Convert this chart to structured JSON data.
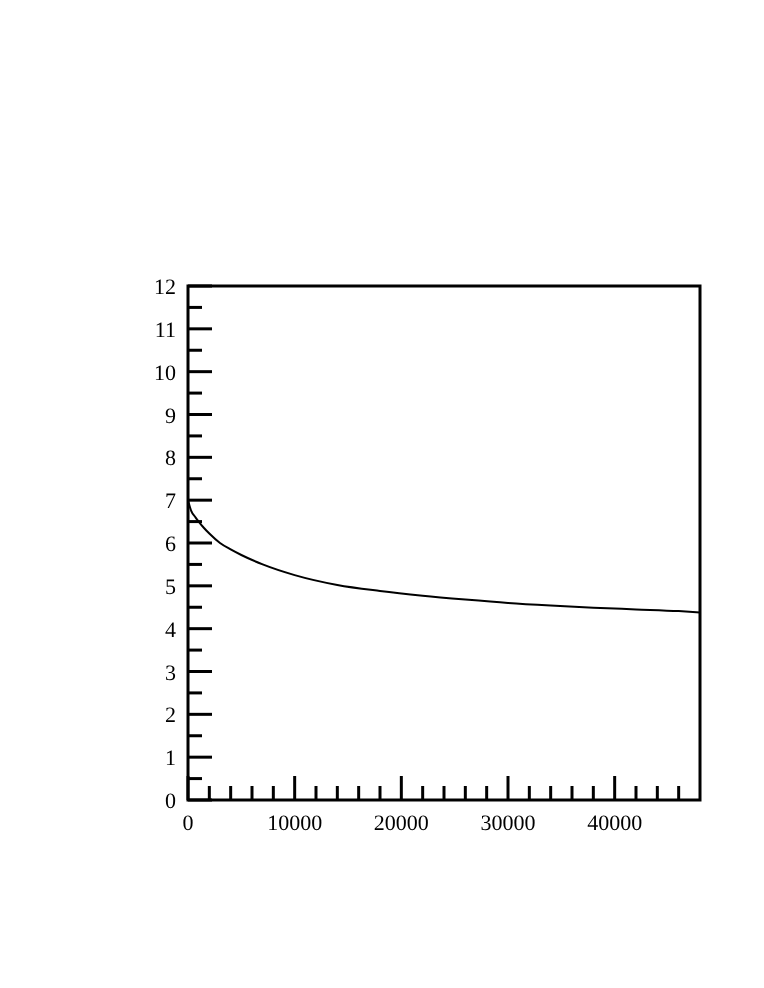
{
  "chart_data": {
    "type": "line",
    "xlim": [
      0,
      48000
    ],
    "ylim": [
      0,
      12
    ],
    "xticks": [
      0,
      {
        "value": 2000,
        "label": null
      },
      {
        "value": 4000,
        "label": null
      },
      {
        "value": 6000,
        "label": null
      },
      {
        "value": 8000,
        "label": null
      },
      10000,
      {
        "value": 12000,
        "label": null
      },
      {
        "value": 14000,
        "label": null
      },
      {
        "value": 16000,
        "label": null
      },
      {
        "value": 18000,
        "label": null
      },
      20000,
      {
        "value": 22000,
        "label": null
      },
      {
        "value": 24000,
        "label": null
      },
      {
        "value": 26000,
        "label": null
      },
      {
        "value": 28000,
        "label": null
      },
      30000,
      {
        "value": 32000,
        "label": null
      },
      {
        "value": 34000,
        "label": null
      },
      {
        "value": 36000,
        "label": null
      },
      {
        "value": 38000,
        "label": null
      },
      40000,
      {
        "value": 42000,
        "label": null
      },
      {
        "value": 44000,
        "label": null
      },
      {
        "value": 46000,
        "label": null
      }
    ],
    "yticks": [
      0,
      {
        "value": 0.5,
        "label": null
      },
      1,
      {
        "value": 1.5,
        "label": null
      },
      2,
      {
        "value": 2.5,
        "label": null
      },
      3,
      {
        "value": 3.5,
        "label": null
      },
      4,
      {
        "value": 4.5,
        "label": null
      },
      5,
      {
        "value": 5.5,
        "label": null
      },
      6,
      {
        "value": 6.5,
        "label": null
      },
      7,
      {
        "value": 7.5,
        "label": null
      },
      8,
      {
        "value": 8.5,
        "label": null
      },
      9,
      {
        "value": 9.5,
        "label": null
      },
      10,
      {
        "value": 10.5,
        "label": null
      },
      11,
      {
        "value": 11.5,
        "label": null
      },
      12
    ],
    "grid": false,
    "marker": "none",
    "line_style": "solid",
    "series": [
      {
        "color": "#000000",
        "x": [
          0,
          300,
          700,
          1000,
          1500,
          2000,
          3000,
          4000,
          5000,
          7000,
          10000,
          14000,
          18000,
          22000,
          26000,
          30000,
          34000,
          38000,
          42000,
          46000,
          48000
        ],
        "values": [
          7.0,
          6.75,
          6.6,
          6.5,
          6.35,
          6.22,
          6.0,
          5.85,
          5.72,
          5.5,
          5.25,
          5.02,
          4.88,
          4.77,
          4.68,
          4.6,
          4.54,
          4.49,
          4.45,
          4.41,
          4.38
        ]
      }
    ]
  }
}
